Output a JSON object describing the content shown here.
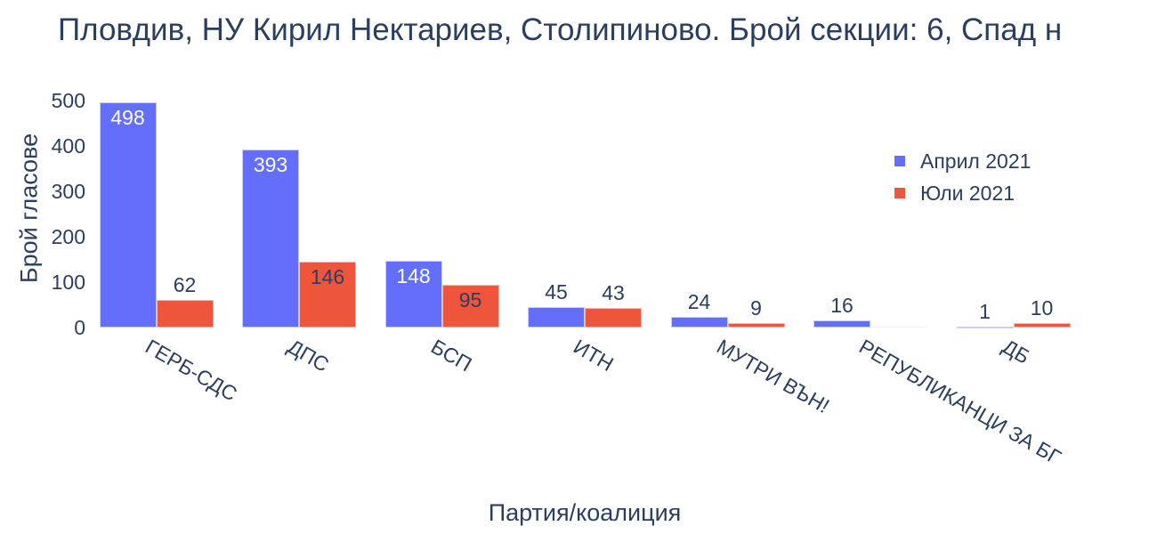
{
  "chart_data": {
    "type": "bar",
    "title": "Пловдив, НУ Кирил Нектариев, Столипиново. Брой секции: 6,  Спад н",
    "xlabel": "Партия/коалиция",
    "ylabel": "Брой гласове",
    "categories": [
      "ГЕРБ-СДС",
      "ДПС",
      "БСП",
      "ИТН",
      "МУТРИ ВЪН!",
      "РЕПУБЛИКАНЦИ ЗА БГ",
      "ДБ"
    ],
    "series": [
      {
        "name": "Април 2021",
        "color": "#636efa",
        "values": [
          498,
          393,
          148,
          45,
          24,
          16,
          1
        ]
      },
      {
        "name": "Юли 2021",
        "color": "#ef553b",
        "values": [
          62,
          146,
          95,
          43,
          9,
          0,
          10
        ]
      }
    ],
    "ylim": [
      0,
      500
    ],
    "yticks": [
      "0",
      "100",
      "200",
      "300",
      "400",
      "500"
    ],
    "grid": false,
    "legend_position": "top-right inside plot",
    "barmode": "group"
  },
  "labels": {
    "a": [
      "498",
      "393",
      "148",
      "45",
      "24",
      "16",
      "1"
    ],
    "j": [
      "62",
      "146",
      "95",
      "43",
      "9",
      "",
      "10"
    ]
  }
}
